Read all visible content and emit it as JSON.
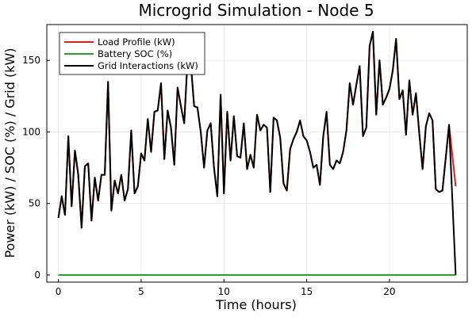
{
  "chart_data": {
    "type": "line",
    "title": "Microgrid Simulation - Node 5",
    "xlabel": "Time (hours)",
    "ylabel": "Power (kW) / SOC (%) / Grid (kW)",
    "xlim": [
      -0.7,
      24.7
    ],
    "ylim": [
      -5,
      175
    ],
    "xticks": [
      0,
      5,
      10,
      15,
      20
    ],
    "yticks": [
      0,
      50,
      100,
      150
    ],
    "grid": true,
    "legend_position": "top-left",
    "x": [
      0.0,
      0.25,
      0.5,
      0.75,
      1.0,
      1.25,
      1.5,
      1.75,
      2.0,
      2.25,
      2.5,
      2.75,
      3.0,
      3.25,
      3.5,
      3.75,
      4.0,
      4.25,
      4.5,
      4.75,
      5.0,
      5.25,
      5.5,
      5.75,
      6.0,
      6.25,
      6.5,
      6.75,
      7.0,
      7.25,
      7.5,
      7.75,
      8.0,
      8.25,
      8.5,
      8.75,
      9.0,
      9.25,
      9.5,
      9.75,
      10.0,
      10.25,
      10.5,
      10.75,
      11.0,
      11.25,
      11.5,
      11.75,
      12.0,
      12.25,
      12.5,
      12.75,
      13.0,
      13.25,
      13.5,
      13.75,
      14.0,
      14.25,
      14.5,
      14.75,
      15.0,
      15.25,
      15.5,
      15.75,
      16.0,
      16.25,
      16.5,
      16.75,
      17.0,
      17.25,
      17.5,
      17.75,
      18.0,
      18.25,
      18.5,
      18.75,
      19.0,
      19.25,
      19.5,
      19.75,
      20.0,
      20.25,
      20.5,
      20.75,
      21.0,
      21.25,
      21.5,
      21.75,
      22.0,
      22.25,
      22.5,
      22.75,
      23.0,
      23.25,
      23.5,
      23.75,
      24.0
    ],
    "series": [
      {
        "name": "Load Profile (kW)",
        "color": "#e41a1c",
        "values": [
          40,
          55,
          42,
          97,
          48,
          87,
          70,
          33,
          76,
          78,
          38,
          68,
          52,
          70,
          70,
          135,
          45,
          66,
          57,
          70,
          52,
          60,
          101,
          57,
          62,
          85,
          80,
          109,
          86,
          114,
          115,
          134,
          81,
          115,
          103,
          77,
          131,
          118,
          106,
          150,
          148,
          118,
          117,
          100,
          75,
          101,
          106,
          75,
          55,
          126,
          57,
          114,
          80,
          111,
          83,
          82,
          106,
          74,
          84,
          75,
          112,
          101,
          105,
          103,
          58,
          110,
          108,
          96,
          64,
          59,
          88,
          95,
          100,
          108,
          97,
          94,
          86,
          75,
          77,
          63,
          97,
          114,
          77,
          74,
          80,
          78,
          86,
          101,
          134,
          119,
          133,
          146,
          97,
          103,
          160,
          170,
          112,
          150,
          119,
          124,
          130,
          143,
          165,
          123,
          129,
          98,
          136,
          112,
          127,
          99,
          74,
          104,
          113,
          108,
          60,
          58,
          59,
          105,
          62
        ],
        "values_note": "",
        "x": [
          0.0,
          0.2,
          0.4,
          0.6,
          0.8,
          1.0,
          1.2,
          1.4,
          1.6,
          1.8,
          2.0,
          2.2,
          2.4,
          2.6,
          2.8,
          3.0,
          3.2,
          3.4,
          3.6,
          3.8,
          4.0,
          4.2,
          4.4,
          4.6,
          4.8,
          5.0,
          5.2,
          5.4,
          5.6,
          5.8,
          6.0,
          6.2,
          6.4,
          6.6,
          6.8,
          7.0,
          7.2,
          7.4,
          7.6,
          7.8,
          8.0,
          8.2,
          8.4,
          8.6,
          8.8,
          9.0,
          9.2,
          9.4,
          9.6,
          9.8,
          10.0,
          10.2,
          10.4,
          10.6,
          10.8,
          11.0,
          11.2,
          11.4,
          11.6,
          11.8,
          12.0,
          12.2,
          12.4,
          12.6,
          12.8,
          13.0,
          13.2,
          13.4,
          13.6,
          13.8,
          14.0,
          14.2,
          14.4,
          14.6,
          14.8,
          15.0,
          15.2,
          15.4,
          15.6,
          15.8,
          16.0,
          16.2,
          16.4,
          16.6,
          16.8,
          17.0,
          17.2,
          17.4,
          17.6,
          17.8,
          18.0,
          18.2,
          18.4,
          18.6,
          18.8,
          19.0,
          19.2,
          19.4,
          19.6,
          19.8,
          20.0,
          20.2,
          20.4,
          20.6,
          20.8,
          21.0,
          21.2,
          21.4,
          21.6,
          21.8,
          22.0,
          22.2,
          22.4,
          22.6,
          22.8,
          23.0,
          23.2,
          23.6,
          24.0
        ]
      },
      {
        "name": "Battery SOC (%)",
        "color": "#2ca02c",
        "x": [
          0,
          24
        ],
        "values": [
          0,
          0
        ]
      },
      {
        "name": "Grid Interactions (kW)",
        "color": "#000000",
        "x": [
          0.0,
          0.2,
          0.4,
          0.6,
          0.8,
          1.0,
          1.2,
          1.4,
          1.6,
          1.8,
          2.0,
          2.2,
          2.4,
          2.6,
          2.8,
          3.0,
          3.2,
          3.4,
          3.6,
          3.8,
          4.0,
          4.2,
          4.4,
          4.6,
          4.8,
          5.0,
          5.2,
          5.4,
          5.6,
          5.8,
          6.0,
          6.2,
          6.4,
          6.6,
          6.8,
          7.0,
          7.2,
          7.4,
          7.6,
          7.8,
          8.0,
          8.2,
          8.4,
          8.6,
          8.8,
          9.0,
          9.2,
          9.4,
          9.6,
          9.8,
          10.0,
          10.2,
          10.4,
          10.6,
          10.8,
          11.0,
          11.2,
          11.4,
          11.6,
          11.8,
          12.0,
          12.2,
          12.4,
          12.6,
          12.8,
          13.0,
          13.2,
          13.4,
          13.6,
          13.8,
          14.0,
          14.2,
          14.4,
          14.6,
          14.8,
          15.0,
          15.2,
          15.4,
          15.6,
          15.8,
          16.0,
          16.2,
          16.4,
          16.6,
          16.8,
          17.0,
          17.2,
          17.4,
          17.6,
          17.8,
          18.0,
          18.2,
          18.4,
          18.6,
          18.8,
          19.0,
          19.2,
          19.4,
          19.6,
          19.8,
          20.0,
          20.2,
          20.4,
          20.6,
          20.8,
          21.0,
          21.2,
          21.4,
          21.6,
          21.8,
          22.0,
          22.2,
          22.4,
          22.6,
          22.8,
          23.0,
          23.2,
          23.6,
          24.0
        ],
        "values": [
          40,
          55,
          42,
          97,
          48,
          87,
          70,
          33,
          76,
          78,
          38,
          68,
          52,
          70,
          70,
          135,
          45,
          66,
          57,
          70,
          52,
          60,
          101,
          57,
          62,
          85,
          80,
          109,
          86,
          114,
          115,
          134,
          81,
          115,
          103,
          77,
          131,
          118,
          106,
          150,
          148,
          118,
          117,
          100,
          75,
          101,
          106,
          75,
          55,
          126,
          57,
          114,
          80,
          111,
          83,
          82,
          106,
          74,
          84,
          75,
          112,
          101,
          105,
          103,
          58,
          110,
          108,
          96,
          64,
          59,
          88,
          95,
          100,
          108,
          97,
          94,
          86,
          75,
          77,
          63,
          97,
          114,
          77,
          74,
          80,
          78,
          86,
          101,
          134,
          119,
          133,
          146,
          97,
          103,
          160,
          170,
          112,
          150,
          119,
          124,
          130,
          143,
          165,
          123,
          129,
          98,
          136,
          112,
          127,
          99,
          74,
          104,
          113,
          108,
          60,
          58,
          59,
          105,
          0
        ]
      }
    ]
  }
}
